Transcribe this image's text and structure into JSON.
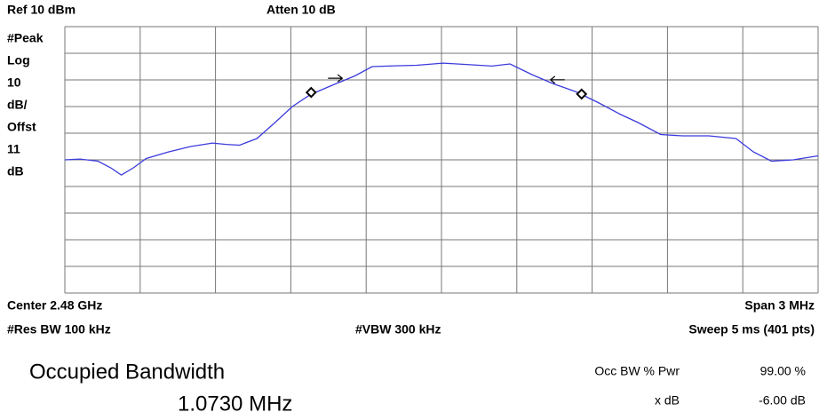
{
  "chart_data": {
    "type": "line",
    "ref_label": "Ref 10 dBm",
    "atten_label": "Atten 10 dB",
    "left_labels": [
      "#Peak",
      "Log",
      "10",
      "dB/",
      "Offst",
      "11",
      "dB"
    ],
    "center_label": "Center 2.48 GHz",
    "span_label": "Span 3 MHz",
    "rbw_label": "#Res BW 100 kHz",
    "vbw_label": "#VBW 300 kHz",
    "sweep_label": "Sweep 5 ms (401 pts)",
    "measurement": {
      "title": "Occupied Bandwidth",
      "value": "1.0730 MHz",
      "rows": [
        [
          "Occ BW % Pwr",
          "99.00 %"
        ],
        [
          "x dB",
          "-6.00 dB"
        ]
      ]
    },
    "x": [
      0,
      0.2,
      0.44,
      0.61,
      0.75,
      0.91,
      1.08,
      1.38,
      1.67,
      1.96,
      2.14,
      2.32,
      2.55,
      2.79,
      3.02,
      3.26,
      3.55,
      3.85,
      4.08,
      4.38,
      4.67,
      5.02,
      5.38,
      5.67,
      5.91,
      6.2,
      6.49,
      6.79,
      7.08,
      7.38,
      7.61,
      7.91,
      8.2,
      8.55,
      8.91,
      9.14,
      9.38,
      9.67,
      10
    ],
    "series": [
      {
        "color": "#3b3bdd",
        "values": [
          -40,
          -39.7,
          -40.5,
          -43,
          -45.7,
          -43,
          -39.5,
          -37,
          -35,
          -33.7,
          -34.2,
          -34.5,
          -32,
          -26,
          -20,
          -15.5,
          -12,
          -8.5,
          -5,
          -4.7,
          -4.5,
          -3.7,
          -4.3,
          -4.8,
          -4,
          -8,
          -11.5,
          -14.5,
          -18.5,
          -23,
          -26,
          -30.5,
          -31,
          -31,
          -32,
          -37,
          -40.5,
          -40,
          -38.5
        ]
      }
    ],
    "markers": {
      "x": [
        3.27,
        6.86
      ],
      "values": [
        -14.7,
        -15.3
      ]
    },
    "xlim": [
      0,
      10
    ],
    "xticks": [
      0,
      1,
      2,
      3,
      4,
      5,
      6,
      7,
      8,
      9,
      10
    ],
    "ylim": [
      -90,
      10
    ],
    "yticks": [
      -90,
      -80,
      -70,
      -60,
      -50,
      -40,
      -30,
      -20,
      -10,
      0,
      10
    ],
    "grid": true
  }
}
